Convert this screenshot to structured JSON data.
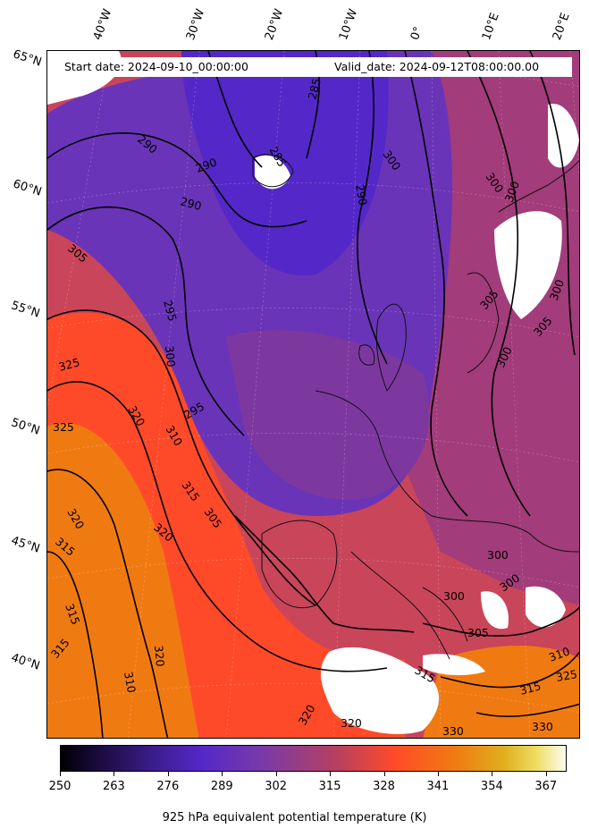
{
  "header": {
    "start_date": "Start date: 2024-09-10_00:00:00",
    "valid_date": "Valid_date: 2024-09-12T08:00:00.00"
  },
  "longitude_labels": [
    "40°W",
    "30°W",
    "20°W",
    "10°W",
    "0°",
    "10°E",
    "20°E"
  ],
  "latitude_labels": [
    "65°N",
    "60°N",
    "55°N",
    "50°N",
    "45°N",
    "40°N"
  ],
  "contour_labels": [
    "285",
    "285",
    "290",
    "290",
    "290",
    "290",
    "295",
    "295",
    "300",
    "300",
    "300",
    "300",
    "300",
    "300",
    "300",
    "300",
    "300",
    "305",
    "305",
    "305",
    "305",
    "305",
    "310",
    "310",
    "310",
    "315",
    "315",
    "315",
    "315",
    "315",
    "315",
    "320",
    "320",
    "320",
    "320",
    "320",
    "320",
    "325",
    "325",
    "325",
    "330",
    "330"
  ],
  "colorbar": {
    "ticks": [
      "250",
      "263",
      "276",
      "289",
      "302",
      "315",
      "328",
      "341",
      "354",
      "367"
    ],
    "label": "925 hPa equivalent potential temperature (K)",
    "range": [
      250,
      372
    ],
    "colormap": "CMRmap-like (black → purple → red → orange → yellow → white)"
  },
  "colors": {
    "cold": "#5a2ec0",
    "mid": "#a03a78",
    "warm": "#ff4a2a",
    "hot": "#ef7a12",
    "missing": "#ffffff"
  }
}
